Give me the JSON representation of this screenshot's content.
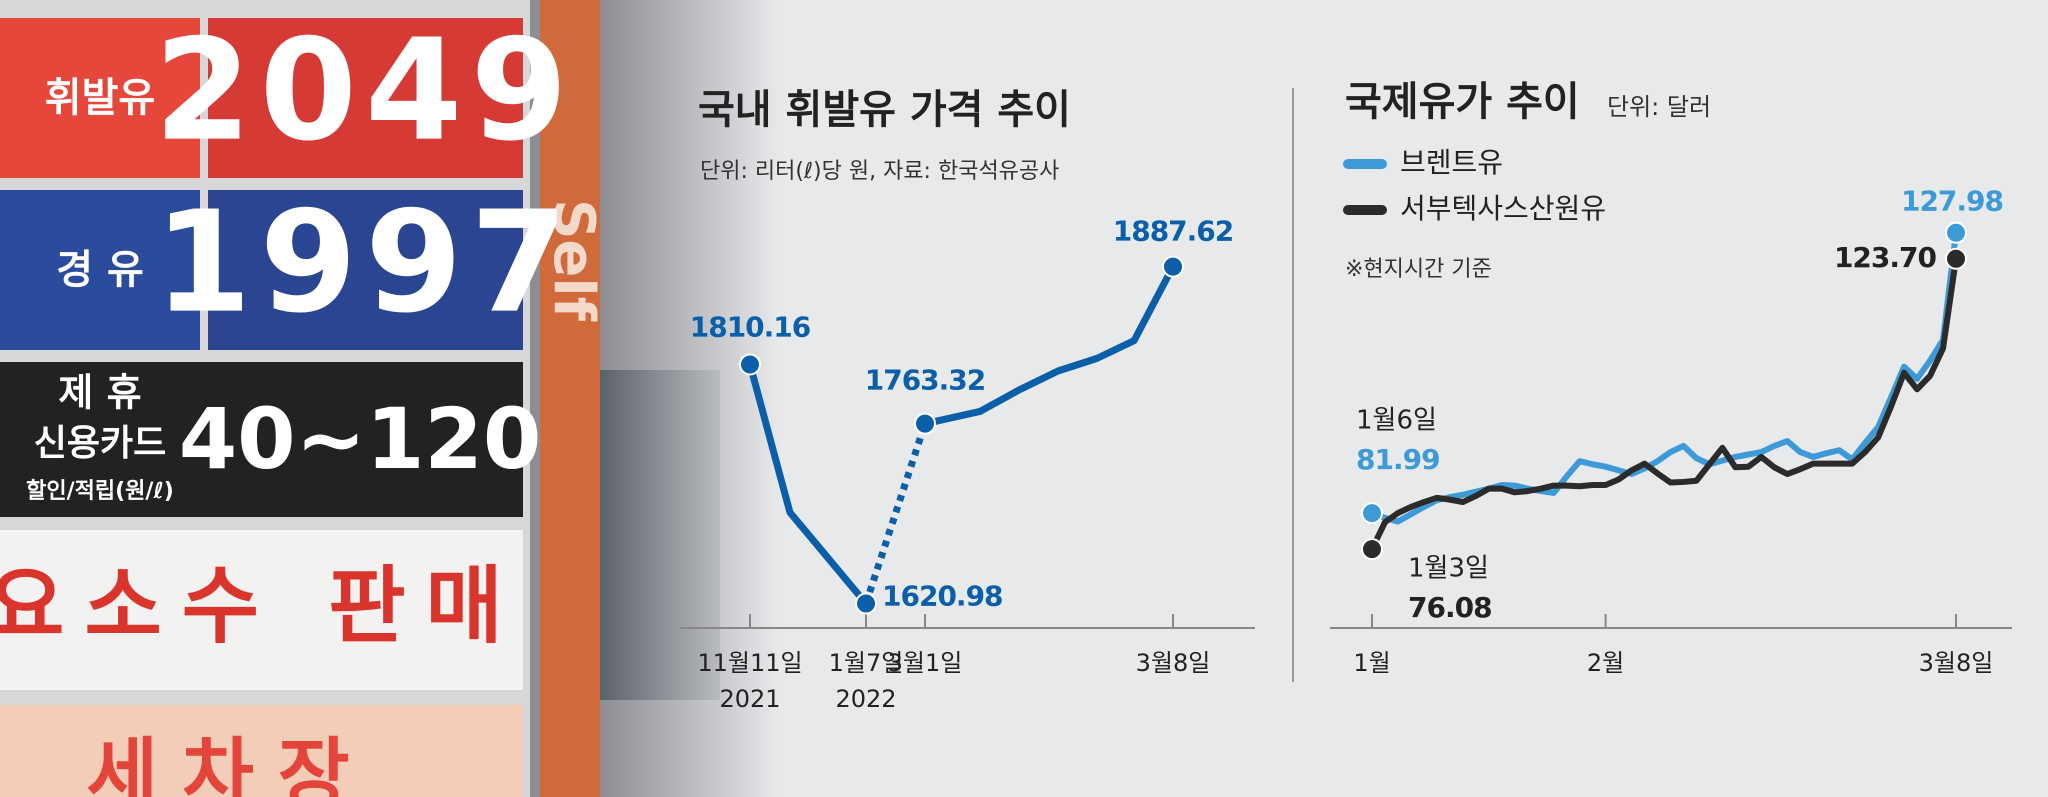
{
  "photo": {
    "gasoline_label": "휘발유",
    "gasoline_price": "2049",
    "diesel_label": "경 유",
    "diesel_price": "1997",
    "partner_label": "제 휴",
    "card_label": "신용카드",
    "discount_range": "40~120",
    "discount_note": "할인/적립(원/ℓ)",
    "urea_sign": "요소수 판매",
    "carwash_sign": "세차장",
    "pillar_text": "Self"
  },
  "chart_data": [
    {
      "type": "line",
      "title": "국내 휘발유 가격 추이",
      "subtitle": "단위: 리터(ℓ)당 원, 자료: 한국석유공사",
      "categories": [
        "11월11일",
        null,
        "1월7일",
        "3월1일",
        null,
        null,
        null,
        null,
        null,
        "3월8일"
      ],
      "category_years": [
        "2021",
        null,
        "2022",
        null,
        null,
        null,
        null,
        null,
        null,
        null
      ],
      "ylim": [
        1600,
        1900
      ],
      "dashed_segment": [
        2,
        3
      ],
      "series": [
        {
          "name": "휘발유",
          "color": "#0b5ea8",
          "values": [
            1810.16,
            1693,
            1620.98,
            1763.32,
            1773,
            1790,
            1805,
            1815,
            1829,
            1887.62
          ],
          "value_labels": [
            "1810.16",
            null,
            "1620.98",
            "1763.32",
            null,
            null,
            null,
            null,
            null,
            "1887.62"
          ]
        }
      ]
    },
    {
      "type": "line",
      "title": "국제유가 추이",
      "subtitle": "단위: 달러",
      "note": "※현지시간 기준",
      "categories": [
        "1월",
        null,
        null,
        null,
        null,
        null,
        null,
        null,
        null,
        null,
        null,
        null,
        null,
        null,
        null,
        null,
        null,
        null,
        "2월",
        null,
        null,
        null,
        null,
        null,
        null,
        null,
        null,
        null,
        null,
        null,
        null,
        null,
        null,
        null,
        null,
        null,
        null,
        null,
        null,
        null,
        null,
        null,
        null,
        null,
        null,
        "3월8일"
      ],
      "ylim": [
        72,
        134
      ],
      "series": [
        {
          "name": "브렌트유",
          "color": "#3d9ad6",
          "start_date": "1월6일",
          "values": [
            81.99,
            81.2,
            80.6,
            81.8,
            83.0,
            84.1,
            84.6,
            85.0,
            85.5,
            86.0,
            86.6,
            86.5,
            86.0,
            85.6,
            85.3,
            88.0,
            90.5,
            90.0,
            89.6,
            89.0,
            88.4,
            89.3,
            90.5,
            92.0,
            93.0,
            91.0,
            90.0,
            90.6,
            91.2,
            91.6,
            92.0,
            93.0,
            93.8,
            92.0,
            91.2,
            91.8,
            92.3,
            90.8,
            93.5,
            96.1,
            101,
            106,
            104,
            107,
            110.4,
            127.98
          ],
          "value_labels": [
            "81.99",
            null,
            null,
            null,
            null,
            null,
            null,
            null,
            null,
            null,
            null,
            null,
            null,
            null,
            null,
            null,
            null,
            null,
            null,
            null,
            null,
            null,
            null,
            null,
            null,
            null,
            null,
            null,
            null,
            null,
            null,
            null,
            null,
            null,
            null,
            null,
            null,
            null,
            null,
            null,
            null,
            null,
            null,
            null,
            null,
            "127.98"
          ]
        },
        {
          "name": "서부텍사스산원유",
          "color": "#2b2b2b",
          "start_date": "1월3일",
          "values": [
            76.08,
            80.5,
            82.0,
            83.0,
            83.8,
            84.5,
            84.2,
            83.8,
            84.8,
            86.0,
            86.0,
            85.4,
            85.6,
            86.0,
            86.5,
            86.5,
            86.4,
            86.6,
            86.6,
            87.5,
            89.0,
            90.1,
            88.5,
            87.0,
            87.1,
            87.3,
            90.0,
            92.7,
            89.5,
            89.6,
            91.2,
            89.5,
            88.4,
            89.2,
            90.1,
            90.1,
            90.1,
            90.1,
            92.0,
            94.4,
            99.5,
            105.0,
            102.3,
            104.5,
            109.0,
            123.7
          ],
          "value_labels": [
            "76.08",
            null,
            null,
            null,
            null,
            null,
            null,
            null,
            null,
            null,
            null,
            null,
            null,
            null,
            null,
            null,
            null,
            null,
            null,
            null,
            null,
            null,
            null,
            null,
            null,
            null,
            null,
            null,
            null,
            null,
            null,
            null,
            null,
            null,
            null,
            null,
            null,
            null,
            null,
            null,
            null,
            null,
            null,
            null,
            null,
            "123.70"
          ]
        }
      ]
    }
  ]
}
